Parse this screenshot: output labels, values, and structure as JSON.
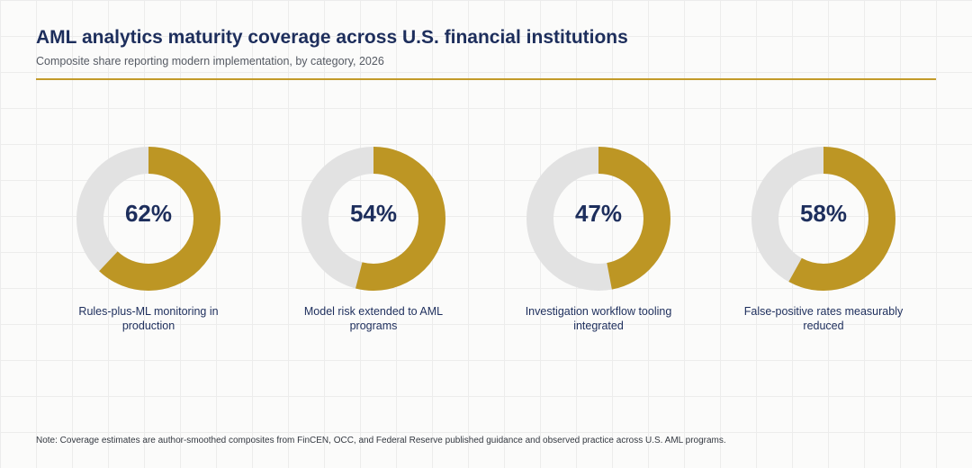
{
  "header": {
    "title": "AML analytics maturity coverage across U.S. financial institutions",
    "subtitle": "Composite share reporting modern implementation, by category, 2026"
  },
  "footer": {
    "note": "Note: Coverage estimates are author-smoothed composites from FinCEN, OCC, and Federal Reserve published guidance and observed practice across U.S. AML programs."
  },
  "colors": {
    "filled": "#bd9624",
    "remaining": "#e2e2e2",
    "text": "#1d2e5c",
    "accent_rule": "#c39b2a"
  },
  "chart_data": {
    "type": "pie",
    "style": "donut",
    "title": "AML analytics maturity coverage across U.S. financial institutions",
    "subtitle": "Composite share reporting modern implementation, by category, 2026",
    "unit": "%",
    "categories": [
      "Rules-plus-ML monitoring in production",
      "Model risk extended to AML programs",
      "Investigation workflow tooling integrated",
      "False-positive rates measurably reduced"
    ],
    "values": [
      62,
      54,
      47,
      58
    ],
    "value_labels": [
      "62%",
      "54%",
      "47%",
      "58%"
    ],
    "max": 100
  }
}
